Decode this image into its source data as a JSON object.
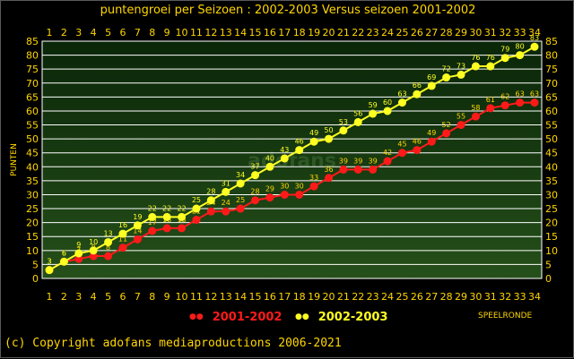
{
  "title": "puntengroei per Seizoen : 2002-2003 Versus seizoen 2001-2002",
  "footer": "(c) Copyright adofans mediaproductions 2006-2021",
  "watermark": "adofans",
  "colors": {
    "axis_text": "#ffd600",
    "grid": "#ffffff",
    "plot_bg_top": "#0a2608",
    "plot_bg_bottom": "#254f1a",
    "series_2001_2002": "#ff1a1a",
    "series_2002_2003": "#ffff22",
    "label_2001_2002": "#ffd600",
    "label_2002_2003": "#ffff22"
  },
  "chart_data": {
    "type": "line",
    "ylabel": "PUNTEN",
    "xlabel": "SPEELRONDE",
    "ylim": [
      0,
      85
    ],
    "y_ticks": [
      0,
      5,
      10,
      15,
      20,
      25,
      30,
      35,
      40,
      45,
      50,
      55,
      60,
      65,
      70,
      75,
      80,
      85
    ],
    "x": [
      1,
      2,
      3,
      4,
      5,
      6,
      7,
      8,
      9,
      10,
      11,
      12,
      13,
      14,
      15,
      16,
      17,
      18,
      19,
      20,
      21,
      22,
      23,
      24,
      25,
      26,
      27,
      28,
      29,
      30,
      31,
      32,
      33,
      34
    ],
    "grid": true,
    "legend_position": "bottom",
    "series": [
      {
        "name": "2001-2002",
        "values": [
          3,
          6,
          7,
          8,
          8,
          11,
          14,
          17,
          18,
          18,
          21,
          24,
          24,
          25,
          28,
          29,
          30,
          30,
          33,
          36,
          39,
          39,
          39,
          42,
          45,
          46,
          49,
          52,
          55,
          58,
          61,
          62,
          63,
          63
        ]
      },
      {
        "name": "2002-2003",
        "values": [
          3,
          6,
          9,
          10,
          13,
          16,
          19,
          22,
          22,
          22,
          25,
          28,
          31,
          34,
          37,
          40,
          43,
          46,
          49,
          50,
          53,
          56,
          59,
          60,
          63,
          66,
          69,
          72,
          73,
          76,
          76,
          79,
          80,
          83
        ]
      }
    ]
  }
}
